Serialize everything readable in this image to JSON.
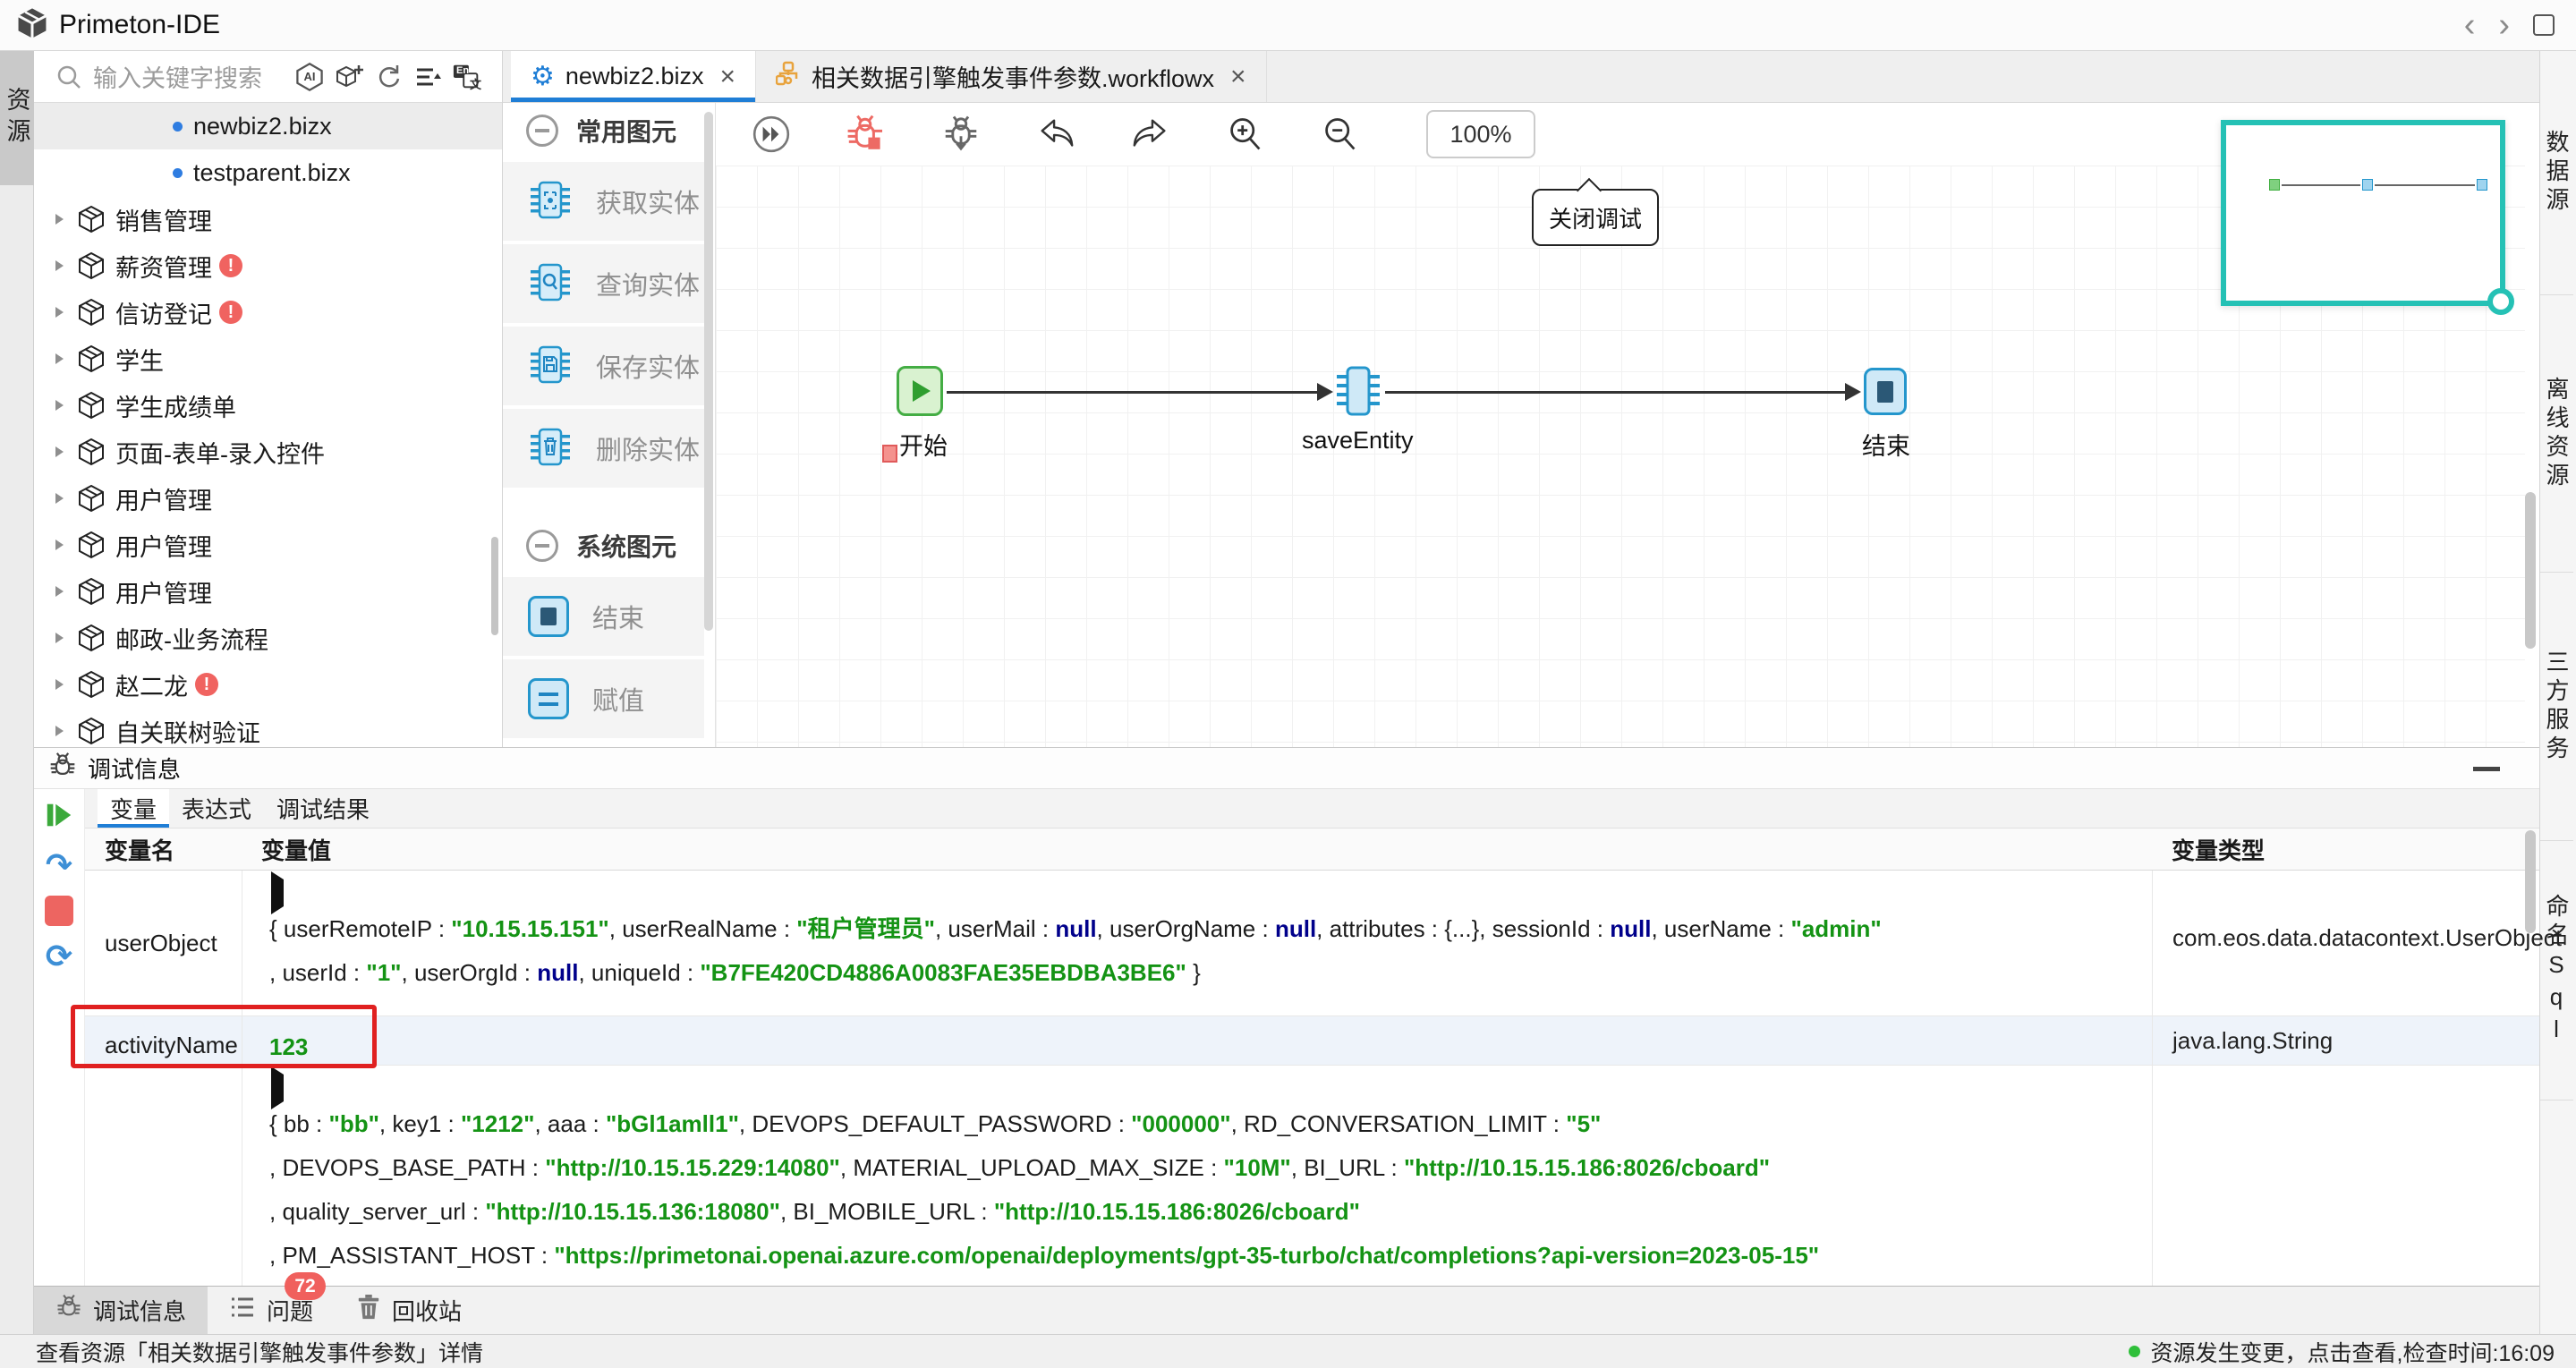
{
  "title_bar": {
    "app_title": "Primeton-IDE"
  },
  "ui": {
    "close_glyph": "×",
    "error_glyph": "!",
    "nav_back": "‹",
    "nav_forward": "›",
    "icons": {
      "ai": "AI",
      "en": "En",
      "zh": "文",
      "step_over": "↷",
      "refresh": "⟳"
    }
  },
  "left_strip": {
    "tab": "资源"
  },
  "explorer": {
    "search_placeholder": "输入关键字搜索",
    "files": [
      {
        "name": "newbiz2.bizx"
      },
      {
        "name": "testparent.bizx"
      }
    ],
    "packages": [
      {
        "label": "销售管理"
      },
      {
        "label": "薪资管理"
      },
      {
        "label": "信访登记"
      },
      {
        "label": "学生"
      },
      {
        "label": "学生成绩单"
      },
      {
        "label": "页面-表单-录入控件"
      },
      {
        "label": "用户管理"
      },
      {
        "label": "用户管理"
      },
      {
        "label": "用户管理"
      },
      {
        "label": "邮政-业务流程"
      },
      {
        "label": "赵二龙"
      },
      {
        "label": "自关联树验证"
      }
    ]
  },
  "tabs": [
    {
      "label": "newbiz2.bizx"
    },
    {
      "label": "相关数据引擎触发事件参数.workflowx"
    }
  ],
  "palette": {
    "groups": [
      {
        "title": "常用图元",
        "items": [
          {
            "label": "获取实体"
          },
          {
            "label": "查询实体"
          },
          {
            "label": "保存实体"
          },
          {
            "label": "删除实体"
          }
        ]
      },
      {
        "title": "系统图元",
        "items": [
          {
            "label": "结束"
          },
          {
            "label": "赋值"
          }
        ]
      }
    ]
  },
  "canvas": {
    "toolbar": {
      "zoom_level": "100%"
    },
    "tooltip": "关闭调试",
    "nodes": [
      {
        "label": "开始"
      },
      {
        "label": "saveEntity"
      },
      {
        "label": "结束"
      }
    ]
  },
  "right_strip": {
    "tabs": [
      "数据源",
      "离线资源",
      "三方服务",
      "命名Sql"
    ]
  },
  "debug_panel": {
    "title": "调试信息",
    "tabs": [
      "变量",
      "表达式",
      "调试结果"
    ],
    "columns": [
      "变量名",
      "变量值",
      "变量类型"
    ],
    "rows": [
      {
        "name": "userObject",
        "type": "com.eos.data.datacontext.UserObject",
        "value_lines": [
          [
            {
              "t": "plain",
              "v": "{ userRemoteIP :  "
            },
            {
              "t": "str",
              "v": "\"10.15.15.151\""
            },
            {
              "t": "plain",
              "v": ",  userRealName :  "
            },
            {
              "t": "str",
              "v": "\"租户管理员\""
            },
            {
              "t": "plain",
              "v": ",  userMail :  "
            },
            {
              "t": "null",
              "v": "null"
            },
            {
              "t": "plain",
              "v": ",  userOrgName :  "
            },
            {
              "t": "null",
              "v": "null"
            },
            {
              "t": "plain",
              "v": ",  attributes :  {...},  sessionId :  "
            },
            {
              "t": "null",
              "v": "null"
            },
            {
              "t": "plain",
              "v": ",  userName :  "
            },
            {
              "t": "str",
              "v": "\"admin\""
            }
          ],
          [
            {
              "t": "plain",
              "v": ",  userId :  "
            },
            {
              "t": "str",
              "v": "\"1\""
            },
            {
              "t": "plain",
              "v": ",  userOrgId :  "
            },
            {
              "t": "null",
              "v": "null"
            },
            {
              "t": "plain",
              "v": ",  uniqueId :  "
            },
            {
              "t": "str",
              "v": "\"B7FE420CD4886A0083FAE35EBDBA3BE6\""
            },
            {
              "t": "plain",
              "v": " }"
            }
          ]
        ]
      },
      {
        "name": "activityName",
        "type": "java.lang.String",
        "value_lines": [
          [
            {
              "t": "str",
              "v": "123"
            }
          ]
        ]
      },
      {
        "name": "",
        "type": "",
        "value_lines": [
          [
            {
              "t": "plain",
              "v": "{ bb :  "
            },
            {
              "t": "str",
              "v": "\"bb\""
            },
            {
              "t": "plain",
              "v": ",  key1 :  "
            },
            {
              "t": "str",
              "v": "\"1212\""
            },
            {
              "t": "plain",
              "v": ",  aaa :  "
            },
            {
              "t": "str",
              "v": "\"bGl1amll1\""
            },
            {
              "t": "plain",
              "v": ",  DEVOPS_DEFAULT_PASSWORD :  "
            },
            {
              "t": "str",
              "v": "\"000000\""
            },
            {
              "t": "plain",
              "v": ",  RD_CONVERSATION_LIMIT :  "
            },
            {
              "t": "str",
              "v": "\"5\""
            }
          ],
          [
            {
              "t": "plain",
              "v": ",  DEVOPS_BASE_PATH :  "
            },
            {
              "t": "str",
              "v": "\"http://10.15.15.229:14080\""
            },
            {
              "t": "plain",
              "v": ",  MATERIAL_UPLOAD_MAX_SIZE :  "
            },
            {
              "t": "str",
              "v": "\"10M\""
            },
            {
              "t": "plain",
              "v": ",  BI_URL :  "
            },
            {
              "t": "str",
              "v": "\"http://10.15.15.186:8026/cboard\""
            }
          ],
          [
            {
              "t": "plain",
              "v": ",  quality_server_url :  "
            },
            {
              "t": "str",
              "v": "\"http://10.15.15.136:18080\""
            },
            {
              "t": "plain",
              "v": ",  BI_MOBILE_URL :  "
            },
            {
              "t": "str",
              "v": "\"http://10.15.15.186:8026/cboard\""
            }
          ],
          [
            {
              "t": "plain",
              "v": ",  PM_ASSISTANT_HOST :  "
            },
            {
              "t": "str",
              "v": "\"https://primetonai.openai.azure.com/openai/deployments/gpt-35-turbo/chat/completions?api-version=2023-05-15\""
            }
          ]
        ]
      }
    ]
  },
  "bottom_tabs": [
    {
      "label": "调试信息"
    },
    {
      "label": "问题",
      "badge": "72"
    },
    {
      "label": "回收站"
    }
  ],
  "status_bar": {
    "left": "查看资源「相关数据引擎触发事件参数」详情",
    "right": "资源发生变更，点击查看,检查时间:16:09"
  }
}
